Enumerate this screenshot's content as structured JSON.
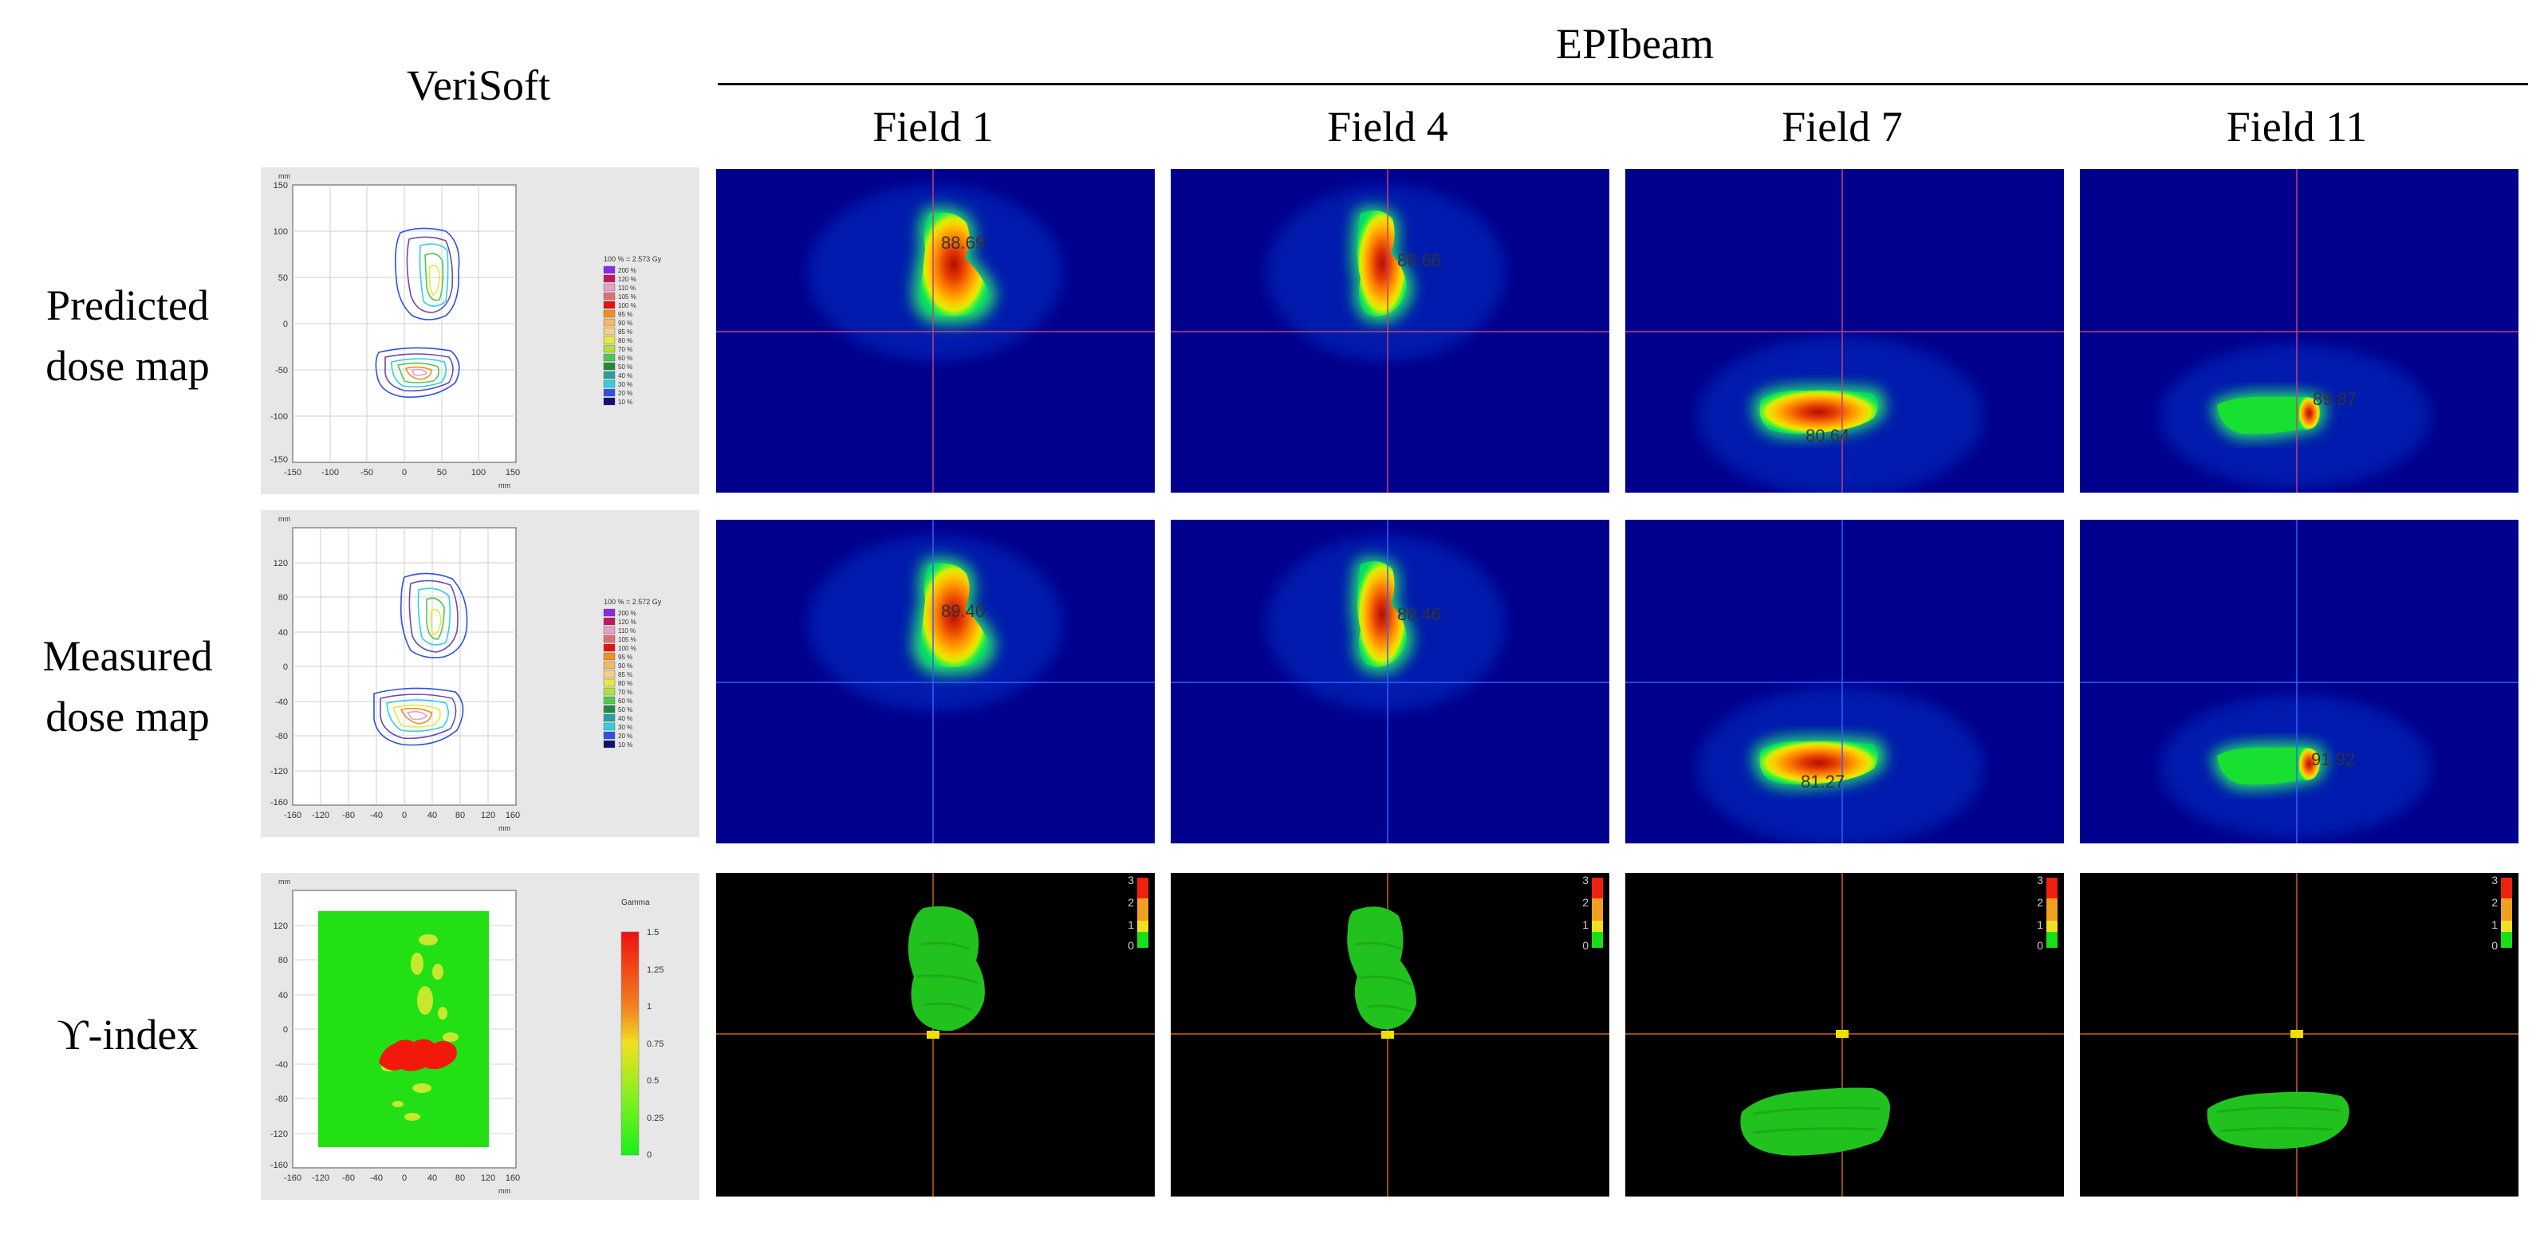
{
  "headers": {
    "verisoft": "VeriSoft",
    "epibeam": "EPIbeam",
    "fields": [
      "Field 1",
      "Field 4",
      "Field 7",
      "Field 11"
    ]
  },
  "rows": [
    {
      "line1": "Predicted",
      "line2": "dose map"
    },
    {
      "line1": "Measured",
      "line2": "dose map"
    },
    {
      "line1": "ϒ-index",
      "line2": ""
    }
  ],
  "verisoft": {
    "unit": "mm",
    "predicted": {
      "legend_title": "100 % = 2.573 Gy",
      "y_ticks": [
        "150",
        "100",
        "50",
        "0",
        "-50",
        "-100",
        "-150"
      ],
      "x_ticks": [
        "-150",
        "-100",
        "-50",
        "0",
        "50",
        "100",
        "150"
      ]
    },
    "measured": {
      "legend_title": "100 % = 2.572 Gy",
      "y_ticks": [
        "120",
        "80",
        "40",
        "0",
        "-40",
        "-80",
        "-120",
        "-160"
      ],
      "x_ticks": [
        "-160",
        "-120",
        "-80",
        "-40",
        "0",
        "40",
        "80",
        "120",
        "160"
      ]
    },
    "legend_levels": [
      "200 %",
      "120 %",
      "110 %",
      "105 %",
      "100 %",
      "95 %",
      "90 %",
      "85 %",
      "80 %",
      "70 %",
      "60 %",
      "50 %",
      "40 %",
      "30 %",
      "20 %",
      "10 %"
    ],
    "legend_colors": [
      "#8a2be2",
      "#c2185b",
      "#e6a0c4",
      "#e07070",
      "#e81010",
      "#f09020",
      "#f6b860",
      "#f5d080",
      "#e8e840",
      "#b0e040",
      "#50c850",
      "#208a40",
      "#28a0a0",
      "#30d0e0",
      "#3050e0",
      "#101070"
    ],
    "gamma": {
      "title": "Gamma",
      "scale": [
        "1.5",
        "1.25",
        "1",
        "0.75",
        "0.5",
        "0.25",
        "0"
      ],
      "y_ticks": [
        "120",
        "80",
        "40",
        "0",
        "-40",
        "-80",
        "-120",
        "-160"
      ],
      "x_ticks": [
        "-160",
        "-120",
        "-80",
        "-40",
        "0",
        "40",
        "80",
        "120",
        "160"
      ]
    }
  },
  "epibeam": {
    "predicted_values": [
      "88.69",
      "88.66",
      "80.64",
      "89.87"
    ],
    "measured_values": [
      "89.40",
      "88.46",
      "81.27",
      "91.92"
    ],
    "gamma_scale": [
      "3",
      "2",
      "1",
      "0"
    ]
  },
  "colors": {
    "dose_background": "#00008c",
    "gamma_background": "#000000",
    "gamma_pass": "#22c21e",
    "crosshair_dose": "#c04080",
    "crosshair_gamma": "#c86414"
  }
}
